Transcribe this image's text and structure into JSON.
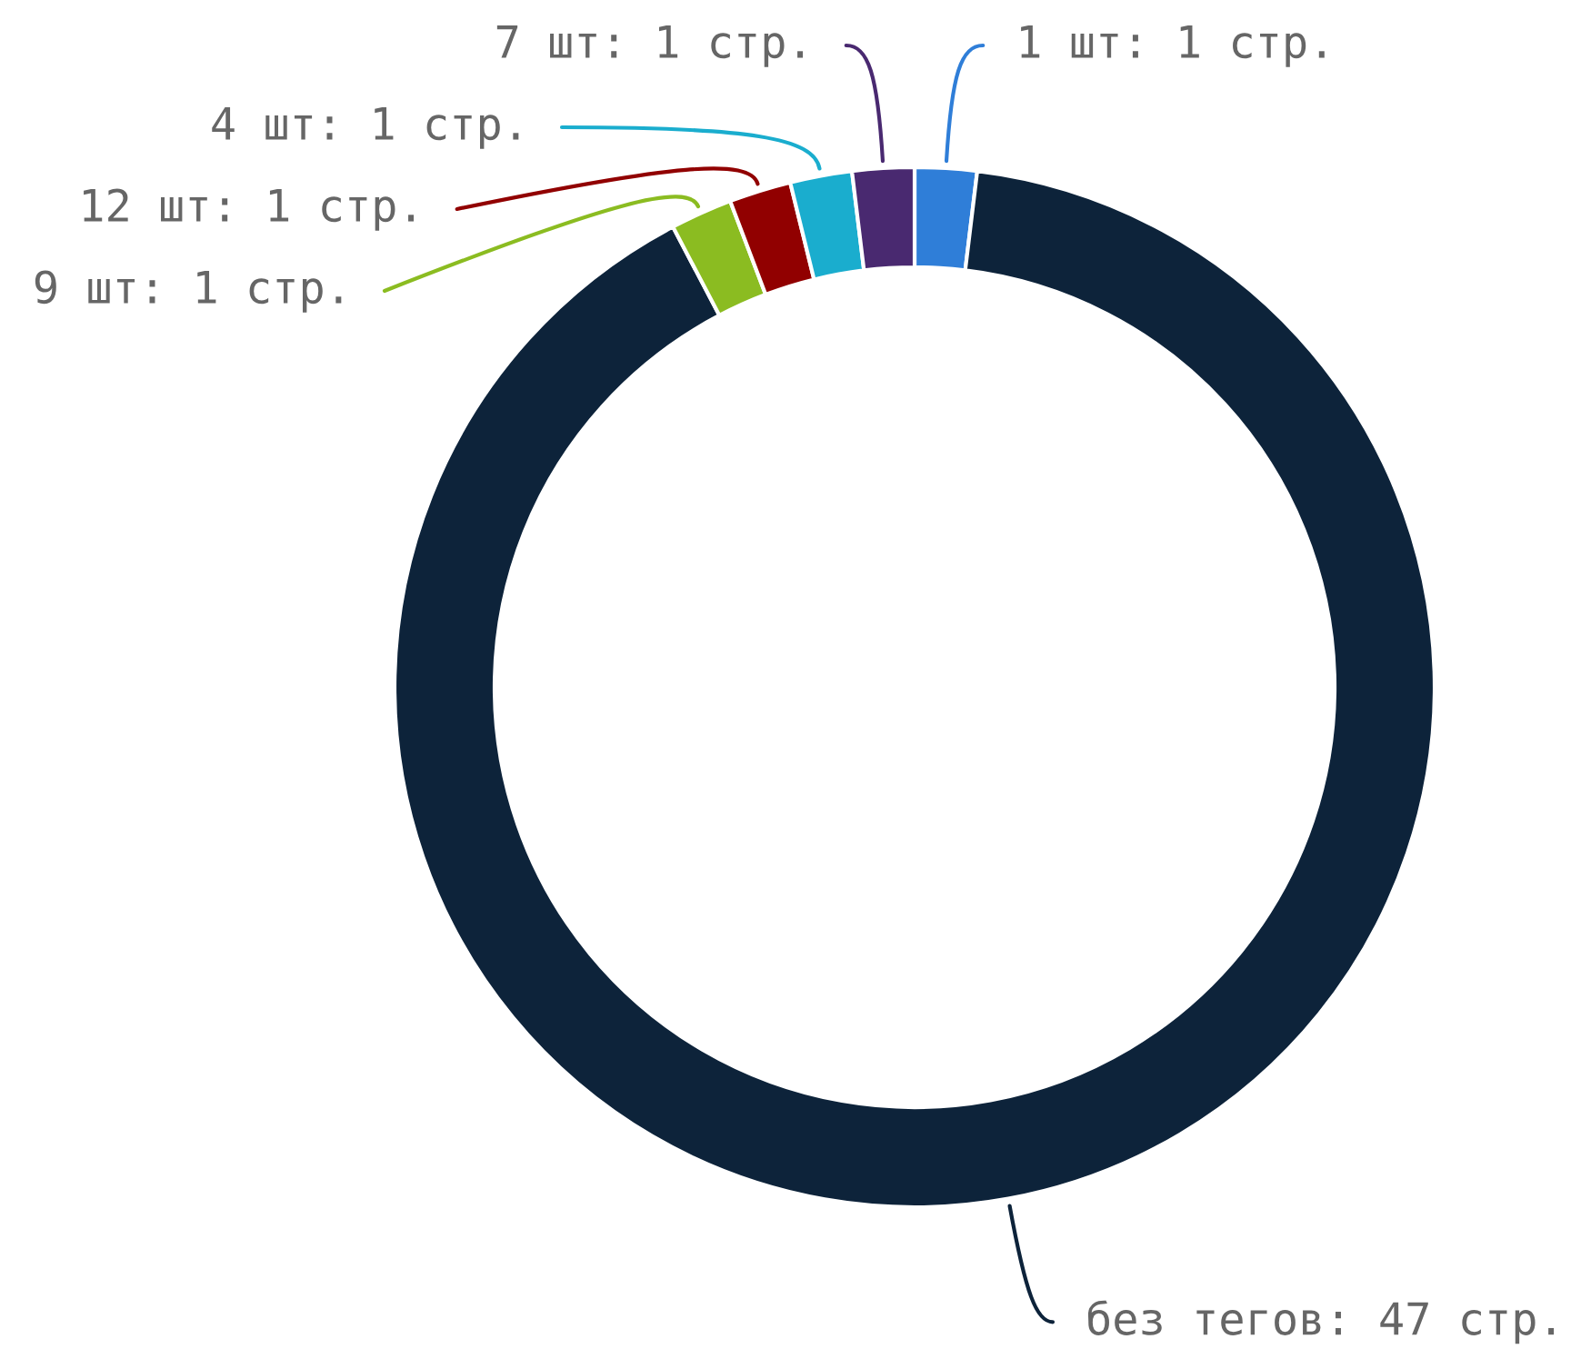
{
  "chart_data": {
    "type": "donut",
    "categories": [
      "1 шт",
      "без тегов",
      "9 шт",
      "12 шт",
      "4 шт",
      "7 шт"
    ],
    "values": [
      1,
      47,
      1,
      1,
      1,
      1
    ],
    "colors": [
      "#2f7ed8",
      "#0d233a",
      "#8bbc21",
      "#910000",
      "#1aadce",
      "#492970"
    ],
    "value_labels": [
      ": 1 стр.",
      ": 47 стр.",
      ": 1 стр.",
      ": 1 стр.",
      ": 1 стр.",
      ": 1 стр."
    ]
  }
}
